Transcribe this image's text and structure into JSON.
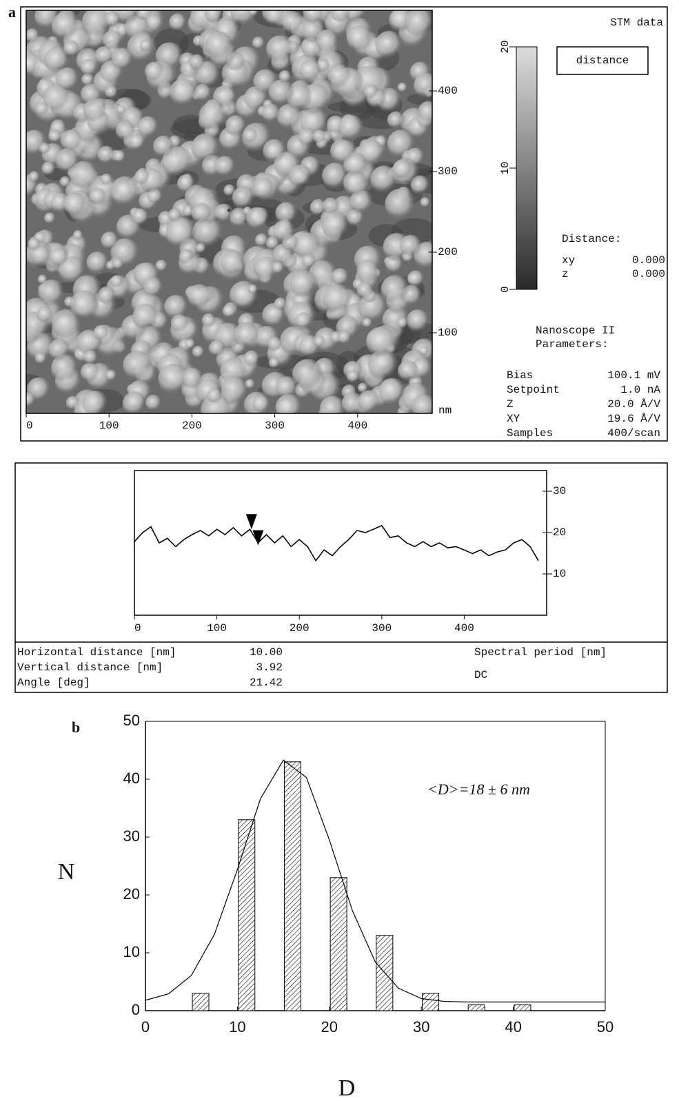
{
  "panel_a": {
    "label": "a",
    "image_title": "STM data",
    "image_axes": {
      "xlim": [
        0,
        490
      ],
      "xticks": [
        0,
        100,
        200,
        300,
        400
      ],
      "ylim": [
        0,
        500
      ],
      "yticks": [
        100,
        200,
        300,
        400
      ],
      "unit": "nm"
    },
    "colorbar": {
      "ylim": [
        0,
        20
      ],
      "yticks": [
        0,
        10,
        20
      ]
    },
    "button": "distance",
    "distance": {
      "title": "Distance:",
      "rows": [
        [
          "xy",
          "0.000"
        ],
        [
          "z",
          "0.000"
        ]
      ]
    },
    "parameters": {
      "title": [
        "Nanoscope II",
        "Parameters:"
      ],
      "rows": [
        [
          "Bias",
          "100.1 mV"
        ],
        [
          "Setpoint",
          "1.0 nA"
        ],
        [
          "Z",
          "20.0 Å/V"
        ],
        [
          "XY",
          "19.6 Å/V"
        ],
        [
          "Samples",
          "400/scan"
        ]
      ]
    }
  },
  "profile_readout": {
    "rows": [
      [
        "Horizontal distance [nm]",
        "10.00"
      ],
      [
        "Vertical distance [nm]",
        "3.92"
      ],
      [
        "Angle [deg]",
        "21.42"
      ]
    ],
    "spectral": "Spectral period [nm]",
    "dc": "DC"
  },
  "chart_data": [
    {
      "type": "line",
      "x": [
        0,
        10,
        20,
        30,
        40,
        50,
        60,
        70,
        80,
        90,
        100,
        110,
        120,
        130,
        140,
        150,
        160,
        170,
        180,
        190,
        200,
        210,
        220,
        230,
        240,
        250,
        260,
        270,
        280,
        290,
        300,
        310,
        320,
        330,
        340,
        350,
        360,
        370,
        380,
        390,
        400,
        410,
        420,
        430,
        440,
        450,
        460,
        470,
        480,
        490
      ],
      "values": [
        17.8,
        20,
        21.4,
        17.5,
        18.6,
        16.6,
        18.3,
        19.5,
        20.5,
        19.2,
        20.8,
        19.5,
        21.2,
        19.2,
        20.8,
        17.5,
        19.5,
        17.5,
        19.2,
        16.6,
        18.3,
        16.6,
        13.2,
        15.8,
        14.4,
        16.6,
        18.3,
        20.5,
        20,
        20.8,
        21.7,
        18.8,
        19.2,
        17.5,
        16.6,
        17.8,
        16.6,
        17.5,
        16.3,
        16.6,
        15.8,
        14.9,
        15.8,
        14.4,
        15.3,
        15.8,
        17.5,
        18.3,
        16.6,
        13.2
      ],
      "cursors": {
        "x": [
          142,
          150
        ],
        "y": [
          20.8,
          16.9
        ]
      },
      "color": "#000",
      "xlim": [
        0,
        500
      ],
      "xticks": [
        0,
        100,
        200,
        300,
        400
      ],
      "ylim": [
        0,
        35
      ],
      "yticks": [
        10,
        20,
        30
      ]
    },
    {
      "type": "bar",
      "label": "b",
      "x": [
        6,
        11,
        16,
        21,
        26,
        31,
        36,
        41
      ],
      "values": [
        3,
        33,
        43,
        23,
        13,
        3,
        1,
        1
      ],
      "fit": {
        "x": [
          0,
          2.5,
          5,
          7.5,
          10,
          12.5,
          15,
          17.5,
          20,
          22.5,
          25,
          27.5,
          30,
          32.5,
          35,
          40,
          45,
          50
        ],
        "values": [
          1.8,
          2.9,
          6.1,
          13.2,
          24.4,
          36.6,
          43.3,
          40.3,
          29.5,
          17.3,
          8.4,
          3.9,
          2.1,
          1.6,
          1.5,
          1.5,
          1.5,
          1.5
        ]
      },
      "color": "#000",
      "annotation": "<D>=18 ± 6 nm",
      "xlabel": "D",
      "ylabel": "N",
      "xlim": [
        0,
        50
      ],
      "xticks": [
        0,
        10,
        20,
        30,
        40,
        50
      ],
      "ylim": [
        0,
        50
      ],
      "yticks": [
        0,
        10,
        20,
        30,
        40,
        50
      ]
    }
  ]
}
